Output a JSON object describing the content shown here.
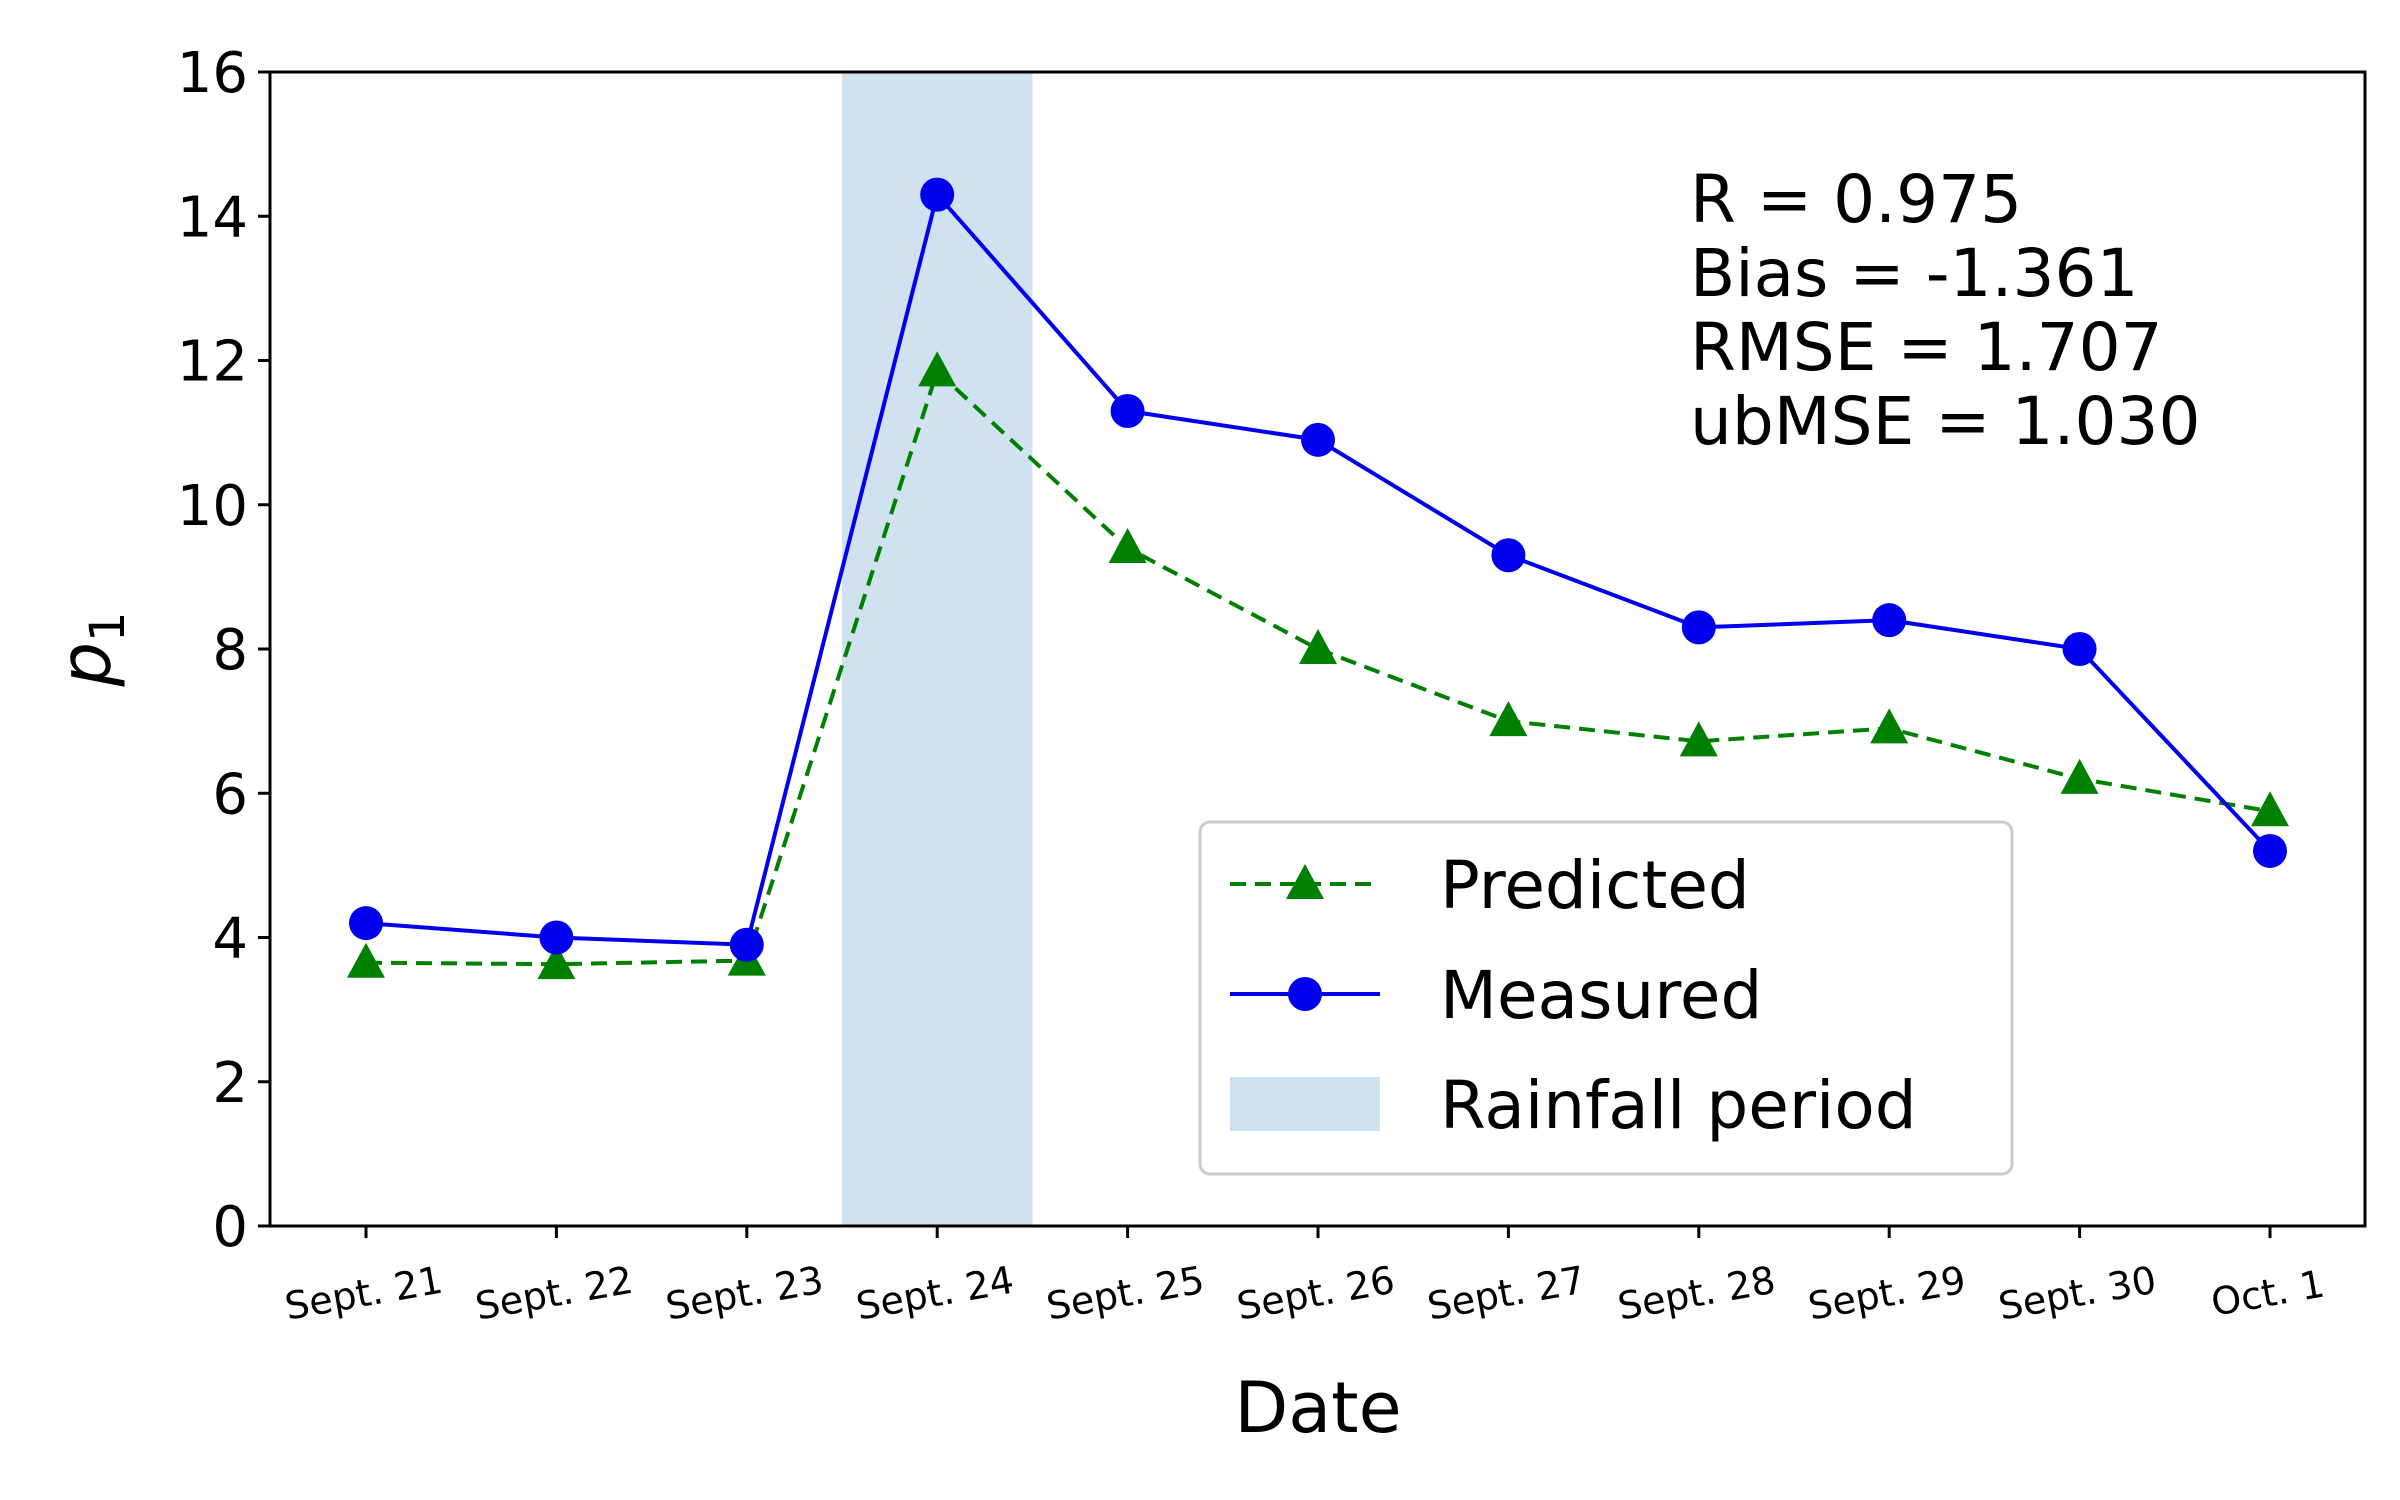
{
  "chart_data": {
    "type": "line",
    "title": "",
    "xlabel": "Date",
    "ylabel": "p",
    "ylabel_subscript": "1",
    "categories": [
      "Sept. 21",
      "Sept. 22",
      "Sept. 23",
      "Sept. 24",
      "Sept. 25",
      "Sept. 26",
      "Sept. 27",
      "Sept. 28",
      "Sept. 29",
      "Sept. 30",
      "Oct. 1"
    ],
    "ylim": [
      0,
      16
    ],
    "yticks": [
      "0",
      "2",
      "4",
      "6",
      "8",
      "10",
      "12",
      "14",
      "16"
    ],
    "grid": false,
    "series": [
      {
        "name": "Predicted",
        "color": "#008000",
        "line_style": "dashed",
        "marker": "triangle",
        "values": [
          3.65,
          3.63,
          3.68,
          11.85,
          9.4,
          8.0,
          7.0,
          6.72,
          6.9,
          6.2,
          5.75
        ]
      },
      {
        "name": "Measured",
        "color": "#0000ee",
        "line_style": "solid",
        "marker": "circle",
        "values": [
          4.2,
          4.0,
          3.9,
          14.3,
          11.3,
          10.9,
          9.3,
          8.3,
          8.4,
          8.0,
          5.2
        ]
      }
    ],
    "shaded_region": {
      "label": "Rainfall period",
      "color": "#d0e1ef",
      "x_range": [
        2.5,
        3.5
      ]
    },
    "annotations": [
      "R = 0.975",
      "Bias = -1.361",
      "RMSE = 1.707",
      "ubMSE = 1.030"
    ],
    "legend": {
      "placement": "lower-right",
      "entries": [
        "Predicted",
        "Measured",
        "Rainfall period"
      ]
    }
  }
}
